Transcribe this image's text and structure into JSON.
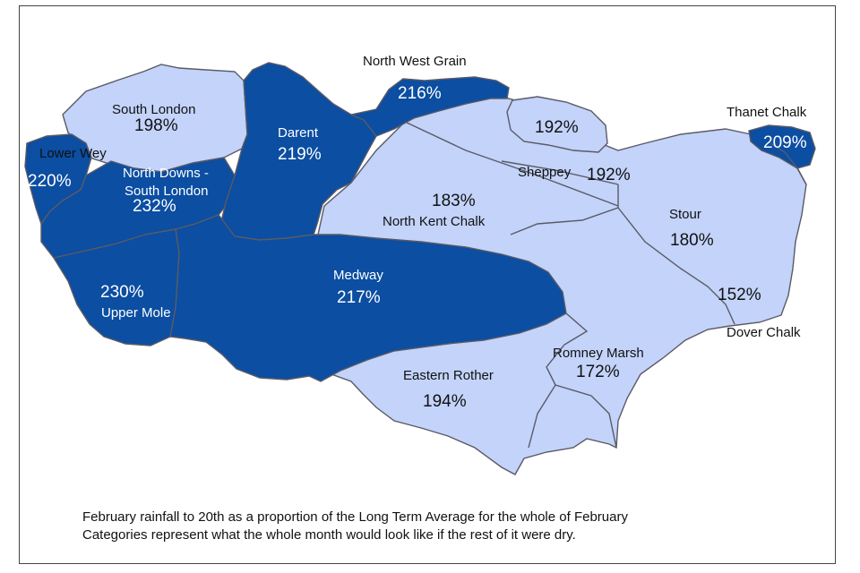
{
  "colors": {
    "dark_category": "#0b4ea2",
    "light_category": "#c3d3fa",
    "border": "#5a5a66"
  },
  "regions": [
    {
      "name": "North West Grain",
      "value": "216%"
    },
    {
      "name": "South London",
      "value": "198%"
    },
    {
      "name": "Darent",
      "value": "219%"
    },
    {
      "name": "",
      "value": "192%"
    },
    {
      "name": "Thanet Chalk",
      "value": "209%"
    },
    {
      "name": "Lower Wey",
      "value": "220%"
    },
    {
      "name": "North Downs - South London",
      "value": "232%"
    },
    {
      "name": "Sheppey",
      "value": "192%"
    },
    {
      "name": "North Kent Chalk",
      "value": "183%"
    },
    {
      "name": "Stour",
      "value": "180%"
    },
    {
      "name": "Upper Mole",
      "value": "230%"
    },
    {
      "name": "Medway",
      "value": "217%"
    },
    {
      "name": "Dover Chalk",
      "value": "152%"
    },
    {
      "name": "Romney Marsh",
      "value": "172%"
    },
    {
      "name": "Eastern Rother",
      "value": "194%"
    }
  ],
  "caption": {
    "line1": "February rainfall to 20th as a proportion of the Long Term Average for the whole of February",
    "line2": "Categories represent what the whole month would look like if the rest of it were dry."
  }
}
